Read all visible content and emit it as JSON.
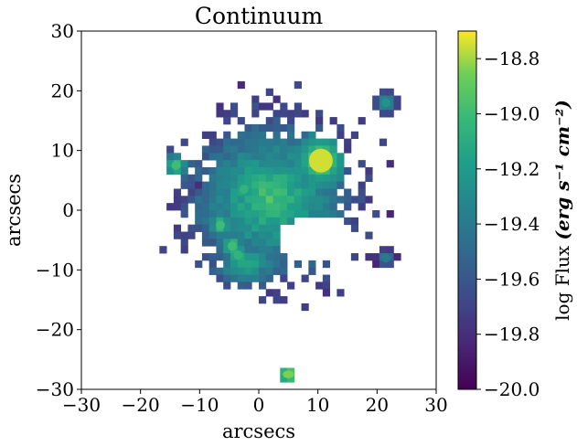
{
  "chart_data": {
    "type": "heatmap",
    "title": "Continuum",
    "xlabel": "arcsecs",
    "ylabel": "arcsecs",
    "xlim": [
      -30,
      30
    ],
    "ylim": [
      -30,
      30
    ],
    "x_ticks": [
      -30,
      -20,
      -10,
      0,
      10,
      20,
      30
    ],
    "y_ticks": [
      -30,
      -20,
      -10,
      0,
      10,
      20,
      30
    ],
    "colorbar": {
      "label_prefix": "log Flux",
      "label_units": "(erg s⁻¹ cm⁻²)",
      "range": [
        -20.0,
        -18.7
      ],
      "ticks": [
        -20.0,
        -19.8,
        -19.6,
        -19.4,
        -19.2,
        -19.0,
        -18.8
      ],
      "colormap": "viridis"
    },
    "features": [
      {
        "name": "bright-source",
        "x": 10.5,
        "y": 8.3,
        "log_flux": -18.75
      },
      {
        "name": "southern-compact-source",
        "x": 5,
        "y": -27.5,
        "log_flux": -18.85
      },
      {
        "name": "northeast-source",
        "x": 21.5,
        "y": 18,
        "log_flux": -19.25
      },
      {
        "name": "east-knot",
        "x": 21.5,
        "y": -8,
        "log_flux": -19.4
      },
      {
        "name": "west-knot",
        "x": -14,
        "y": 7.5,
        "log_flux": -19.0
      },
      {
        "name": "central-knot",
        "x": -2.5,
        "y": 3.5,
        "log_flux": -19.05
      },
      {
        "name": "southwest-knot-1",
        "x": -6.5,
        "y": -2.5,
        "log_flux": -19.0
      },
      {
        "name": "southwest-knot-2",
        "x": -4.5,
        "y": -6,
        "log_flux": -19.0
      },
      {
        "name": "southwest-knot-3",
        "x": -3.5,
        "y": -7.5,
        "log_flux": -19.05
      }
    ]
  }
}
